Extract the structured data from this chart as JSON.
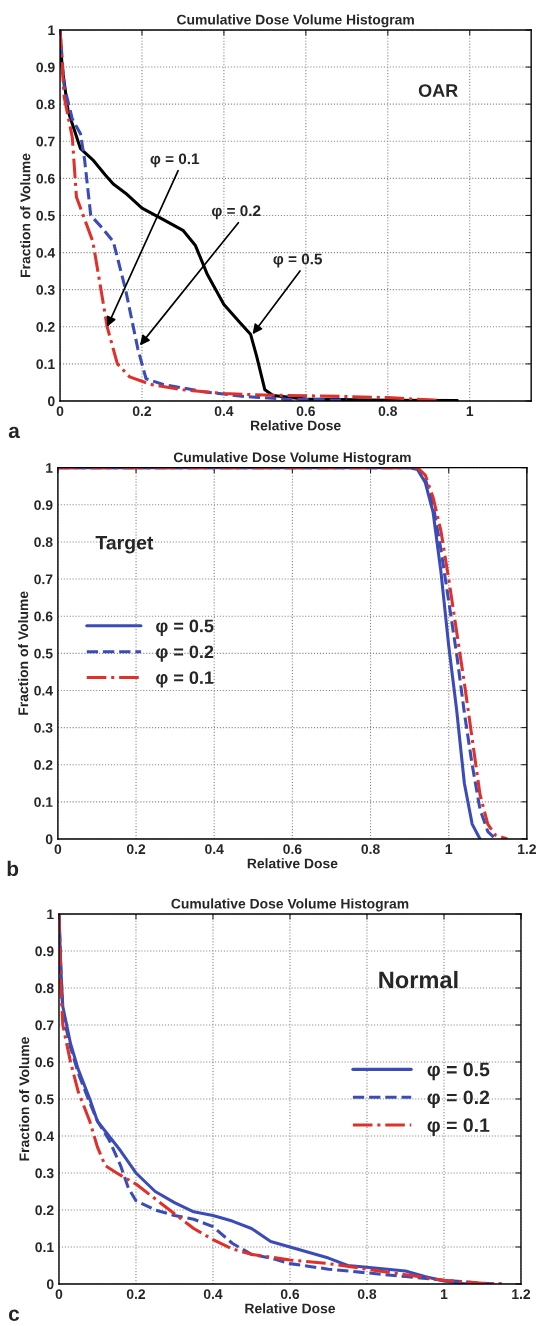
{
  "chart_data": [
    {
      "type": "line",
      "title": "Cumulative Dose Volume Histogram",
      "xlabel": "Relative Dose",
      "ylabel": "Fraction of Volume",
      "xlim": [
        0,
        1.15
      ],
      "xticks": [
        0,
        0.2,
        0.4,
        0.6,
        0.8,
        1
      ],
      "ylim": [
        0,
        1
      ],
      "yticks": [
        0,
        0.1,
        0.2,
        0.3,
        0.4,
        0.5,
        0.6,
        0.7,
        0.8,
        0.9,
        1
      ],
      "grid": true,
      "legend": false,
      "annotations": [
        "OAR",
        "a",
        {
          "text": "φ = 0.1",
          "x": 0.115,
          "y": 0.2
        },
        {
          "text": "φ = 0.2",
          "x": 0.195,
          "y": 0.15
        },
        {
          "text": "φ = 0.5",
          "x": 0.47,
          "y": 0.18
        }
      ],
      "series": [
        {
          "color": "#000000",
          "line_style": "solid",
          "x": [
            0,
            0.005,
            0.02,
            0.05,
            0.08,
            0.11,
            0.13,
            0.16,
            0.2,
            0.25,
            0.3,
            0.33,
            0.36,
            0.4,
            0.44,
            0.465,
            0.48,
            0.5,
            0.52,
            0.6,
            0.8,
            0.97
          ],
          "values": [
            1,
            0.9,
            0.78,
            0.68,
            0.65,
            0.61,
            0.585,
            0.56,
            0.52,
            0.49,
            0.46,
            0.42,
            0.34,
            0.26,
            0.21,
            0.18,
            0.12,
            0.03,
            0.015,
            0.005,
            0.002,
            0.001
          ]
        },
        {
          "color": "#3b4cb8",
          "line_style": "dashed",
          "x": [
            0,
            0.01,
            0.03,
            0.05,
            0.06,
            0.075,
            0.1,
            0.13,
            0.16,
            0.19,
            0.21,
            0.25,
            0.35,
            0.45,
            0.55,
            0.7
          ],
          "values": [
            1,
            0.85,
            0.76,
            0.72,
            0.65,
            0.5,
            0.47,
            0.43,
            0.3,
            0.14,
            0.06,
            0.045,
            0.025,
            0.012,
            0.005,
            0.002
          ]
        },
        {
          "color": "#e0302a",
          "line_style": "dashdot",
          "x": [
            0,
            0.01,
            0.03,
            0.04,
            0.06,
            0.08,
            0.1,
            0.115,
            0.14,
            0.17,
            0.22,
            0.3,
            0.4,
            0.5,
            0.6,
            0.7,
            0.8,
            0.9,
            0.93
          ],
          "values": [
            1,
            0.82,
            0.71,
            0.55,
            0.49,
            0.43,
            0.3,
            0.2,
            0.1,
            0.065,
            0.045,
            0.03,
            0.02,
            0.016,
            0.014,
            0.012,
            0.009,
            0.003,
            0.001
          ]
        }
      ]
    },
    {
      "type": "line",
      "title": "Cumulative Dose Volume Histogram",
      "xlabel": "Relative Dose",
      "ylabel": "Fraction of Volume",
      "xlim": [
        0,
        1.2
      ],
      "xticks": [
        0,
        0.2,
        0.4,
        0.6,
        0.8,
        1,
        1.2
      ],
      "ylim": [
        0,
        1
      ],
      "yticks": [
        0,
        0.1,
        0.2,
        0.3,
        0.4,
        0.5,
        0.6,
        0.7,
        0.8,
        0.9,
        1
      ],
      "grid": true,
      "legend": "center left",
      "annotations": [
        "Target",
        "b"
      ],
      "series": [
        {
          "name": "φ = 0.5",
          "color": "#3b4cb8",
          "line_style": "solid",
          "x": [
            0,
            0.9,
            0.92,
            0.94,
            0.96,
            0.98,
            1.0,
            1.02,
            1.04,
            1.06,
            1.08
          ],
          "values": [
            1,
            1,
            0.995,
            0.96,
            0.88,
            0.72,
            0.52,
            0.35,
            0.15,
            0.04,
            0
          ]
        },
        {
          "name": "φ = 0.2",
          "color": "#3b4cb8",
          "line_style": "dashed",
          "x": [
            0,
            0.92,
            0.94,
            0.96,
            0.98,
            1.0,
            1.02,
            1.04,
            1.06,
            1.08,
            1.1,
            1.12
          ],
          "values": [
            1,
            1,
            0.97,
            0.9,
            0.78,
            0.64,
            0.5,
            0.34,
            0.2,
            0.08,
            0.02,
            0
          ]
        },
        {
          "name": "φ = 0.1",
          "color": "#e0302a",
          "line_style": "dashdot",
          "x": [
            0,
            0.92,
            0.94,
            0.96,
            0.98,
            1.0,
            1.02,
            1.04,
            1.06,
            1.08,
            1.1,
            1.12,
            1.15
          ],
          "values": [
            1,
            1,
            0.98,
            0.92,
            0.83,
            0.7,
            0.56,
            0.42,
            0.27,
            0.12,
            0.04,
            0.01,
            0
          ]
        }
      ]
    },
    {
      "type": "line",
      "title": "Cumulative Dose Volume Histogram",
      "xlabel": "Relative Dose",
      "ylabel": "Fraction of Volume",
      "xlim": [
        0,
        1.2
      ],
      "xticks": [
        0,
        0.2,
        0.4,
        0.6,
        0.8,
        1,
        1.2
      ],
      "ylim": [
        0,
        1
      ],
      "yticks": [
        0,
        0.1,
        0.2,
        0.3,
        0.4,
        0.5,
        0.6,
        0.7,
        0.8,
        0.9,
        1
      ],
      "grid": true,
      "legend": "center right",
      "annotations": [
        "Normal",
        "c"
      ],
      "series": [
        {
          "name": "φ = 0.5",
          "color": "#3b4cb8",
          "line_style": "solid",
          "x": [
            0,
            0.005,
            0.01,
            0.03,
            0.05,
            0.08,
            0.1,
            0.13,
            0.16,
            0.2,
            0.25,
            0.3,
            0.35,
            0.4,
            0.45,
            0.5,
            0.55,
            0.6,
            0.7,
            0.75,
            0.8,
            0.9,
            0.95,
            1.0,
            1.05,
            1.1
          ],
          "values": [
            1,
            0.85,
            0.75,
            0.65,
            0.58,
            0.5,
            0.44,
            0.4,
            0.36,
            0.3,
            0.25,
            0.22,
            0.195,
            0.185,
            0.17,
            0.15,
            0.115,
            0.1,
            0.07,
            0.05,
            0.045,
            0.035,
            0.02,
            0.008,
            0.001,
            0
          ]
        },
        {
          "name": "φ = 0.2",
          "color": "#3b4cb8",
          "line_style": "dashed",
          "x": [
            0,
            0.005,
            0.01,
            0.03,
            0.05,
            0.08,
            0.1,
            0.13,
            0.16,
            0.18,
            0.2,
            0.25,
            0.3,
            0.35,
            0.4,
            0.45,
            0.5,
            0.55,
            0.6,
            0.7,
            0.8,
            0.9,
            1.0,
            1.1,
            1.15
          ],
          "values": [
            1,
            0.85,
            0.73,
            0.64,
            0.57,
            0.49,
            0.44,
            0.39,
            0.32,
            0.26,
            0.225,
            0.2,
            0.185,
            0.175,
            0.155,
            0.11,
            0.08,
            0.07,
            0.055,
            0.04,
            0.03,
            0.02,
            0.01,
            0.002,
            0
          ]
        },
        {
          "name": "φ = 0.1",
          "color": "#e0302a",
          "line_style": "dashdot",
          "x": [
            0,
            0.005,
            0.01,
            0.03,
            0.05,
            0.08,
            0.1,
            0.12,
            0.15,
            0.2,
            0.25,
            0.3,
            0.35,
            0.4,
            0.45,
            0.5,
            0.6,
            0.7,
            0.8,
            0.9,
            1.0,
            1.1,
            1.15
          ],
          "values": [
            1,
            0.8,
            0.7,
            0.6,
            0.52,
            0.44,
            0.37,
            0.32,
            0.3,
            0.27,
            0.23,
            0.19,
            0.15,
            0.12,
            0.095,
            0.08,
            0.065,
            0.055,
            0.04,
            0.025,
            0.01,
            0.002,
            0
          ]
        }
      ]
    }
  ]
}
